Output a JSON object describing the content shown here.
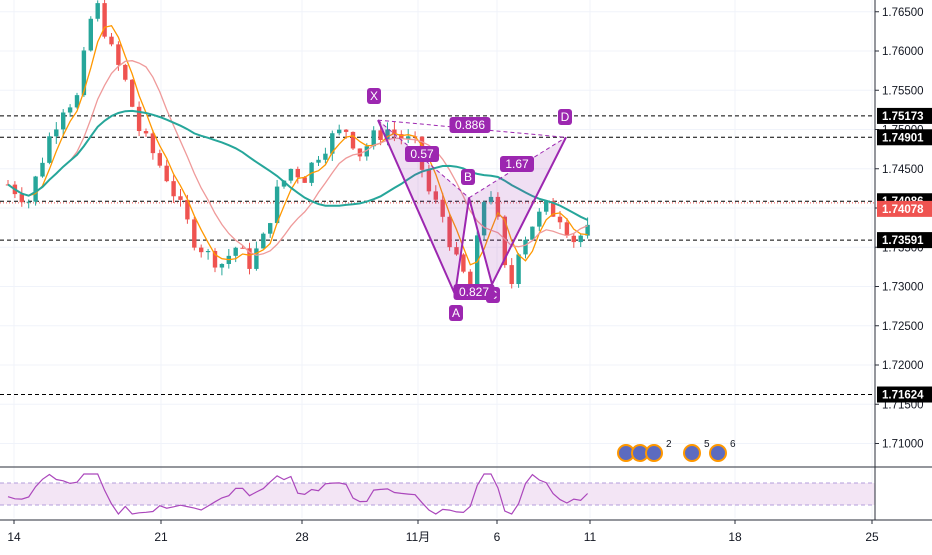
{
  "chart_data": {
    "type": "candlestick",
    "price_axis": {
      "ticks": [
        "1.76500",
        "1.76000",
        "1.75500",
        "1.75000",
        "1.74500",
        "1.74000",
        "1.73500",
        "1.73000",
        "1.72500",
        "1.72000",
        "1.71500",
        "1.71000"
      ],
      "range": [
        1.7057,
        1.7666
      ]
    },
    "time_axis": {
      "ticks": [
        "14",
        "21",
        "28",
        "11月",
        "6",
        "11",
        "18",
        "25"
      ]
    },
    "horizontal_levels": [
      {
        "label": "1.75173",
        "value": 1.75173,
        "style": "dashed"
      },
      {
        "label": "1.74901",
        "value": 1.74901,
        "style": "dashed"
      },
      {
        "label": "1.74086",
        "value": 1.74086,
        "style": "dashed"
      },
      {
        "label": "1.73591",
        "value": 1.73591,
        "style": "dashed"
      },
      {
        "label": "1.71624",
        "value": 1.71624,
        "style": "dashed"
      }
    ],
    "current_price": {
      "label": "1.74078",
      "value": 1.74078,
      "color": "#ef5350"
    },
    "harmonic_pattern": {
      "color": "#9c27b0",
      "points": [
        {
          "label": "X",
          "value": 1.7512
        },
        {
          "label": "A",
          "value": 1.729
        },
        {
          "label": "B",
          "value": 1.7413
        },
        {
          "label": "C",
          "value": 1.7303
        },
        {
          "label": "D",
          "value": 1.749
        }
      ],
      "ratios": [
        "0.886",
        "0.57",
        "1.67",
        "0.827"
      ]
    },
    "series": [
      {
        "name": "",
        "color": "#ff9800",
        "kind": "ma-fast"
      },
      {
        "name": "",
        "color": "#ef9a9a",
        "kind": "ma-medium"
      },
      {
        "name": "",
        "color": "#26a69a",
        "kind": "ma-slow"
      }
    ],
    "colors": {
      "up": "#26a69a",
      "down": "#ef5350",
      "rsi": "#ab47bc",
      "rsi_band": "#f3e5f5"
    },
    "event_markers": {
      "counts": [
        "2",
        "5",
        "6"
      ]
    },
    "grid": true
  }
}
